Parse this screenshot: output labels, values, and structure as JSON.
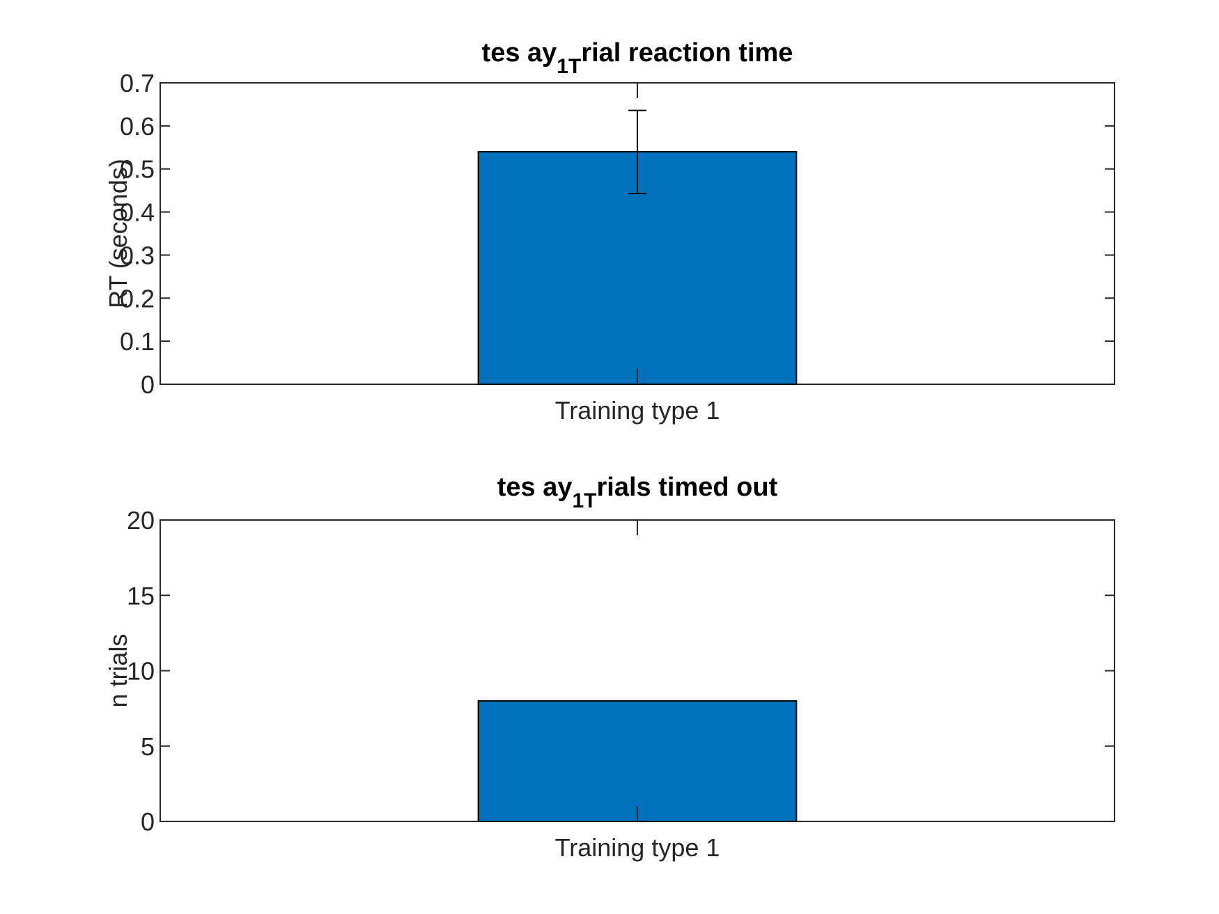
{
  "chart_data": [
    {
      "type": "bar",
      "title_parts": {
        "pre": "tes ay",
        "sub": "1T",
        "post": "rial reaction time"
      },
      "ylabel": "RT (seconds)",
      "categories": [
        "Training type 1"
      ],
      "values": [
        0.54
      ],
      "error_bars": [
        {
          "low": 0.443,
          "high": 0.636
        }
      ],
      "ylim": [
        0,
        0.7
      ],
      "yticks": [
        "0",
        "0.1",
        "0.2",
        "0.3",
        "0.4",
        "0.5",
        "0.6",
        "0.7"
      ],
      "bar_color": "#0072BD",
      "grid": false
    },
    {
      "type": "bar",
      "title_parts": {
        "pre": "tes ay",
        "sub": "1T",
        "post": "rials timed out"
      },
      "ylabel": "n trials",
      "categories": [
        "Training type 1"
      ],
      "values": [
        8
      ],
      "ylim": [
        0,
        20
      ],
      "yticks": [
        "0",
        "5",
        "10",
        "15",
        "20"
      ],
      "bar_color": "#0072BD",
      "grid": false
    }
  ]
}
